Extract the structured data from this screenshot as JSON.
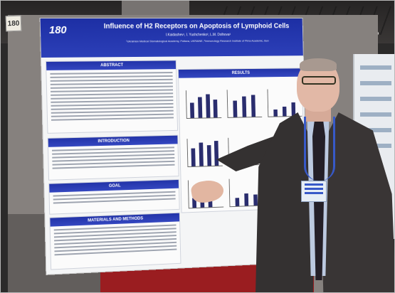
{
  "booth_number": "180",
  "poster": {
    "number": "180",
    "title": "Influence of H2 Receptors on Apoptosis of Lymphoid Cells",
    "authors": "I.Kaidashev¹, I. Yushchenko², L.M. Dolhova³",
    "affiliations": "¹Ukrainian Medical Stomatological Academy, Poltava, UKRAINE, ²Immunology Research Institute of Pima Academic, Bun",
    "sections": {
      "abstract": "ABSTRACT",
      "results": "RESULTS",
      "introduction": "INTRODUCTION",
      "goal": "GOAL",
      "materials": "MATERIALS AND METHODS"
    },
    "header_color": "#1d2fa4"
  },
  "scene": {
    "floor_color": "#9a1d20",
    "board_color": "#86817e"
  }
}
